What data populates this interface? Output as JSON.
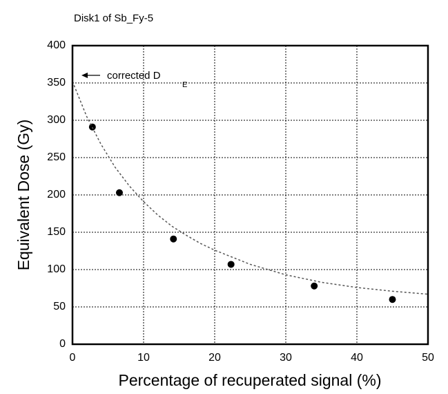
{
  "chart_data": {
    "type": "scatter",
    "title": "Disk1 of Sb_Fy-5",
    "x_label": "Percentage of recuperated signal (%)",
    "y_label": "Equivalent Dose (Gy)",
    "annotation": {
      "text": "corrected D",
      "subscript": "E"
    },
    "xlim": [
      0,
      50
    ],
    "xticks": [
      0,
      10,
      20,
      30,
      40,
      50
    ],
    "ylim": [
      0,
      400
    ],
    "yticks": [
      0,
      50,
      100,
      150,
      200,
      250,
      300,
      350,
      400
    ],
    "grid": true,
    "series": [
      {
        "type": "scatter",
        "color": "#000000",
        "x": [
          2.8,
          6.6,
          14.2,
          22.3,
          34,
          45
        ],
        "values": [
          291,
          203,
          141,
          107,
          78,
          60
        ]
      },
      {
        "type": "line",
        "color": "#555555",
        "dashed": true,
        "x": [
          0,
          2,
          4,
          6,
          8,
          10,
          12,
          14,
          16,
          18,
          20,
          25,
          30,
          35,
          40,
          45,
          50
        ],
        "values": [
          352,
          305,
          268,
          237,
          212,
          191,
          173,
          158,
          146,
          135,
          126,
          107,
          93,
          83,
          76,
          71,
          67
        ]
      }
    ]
  }
}
